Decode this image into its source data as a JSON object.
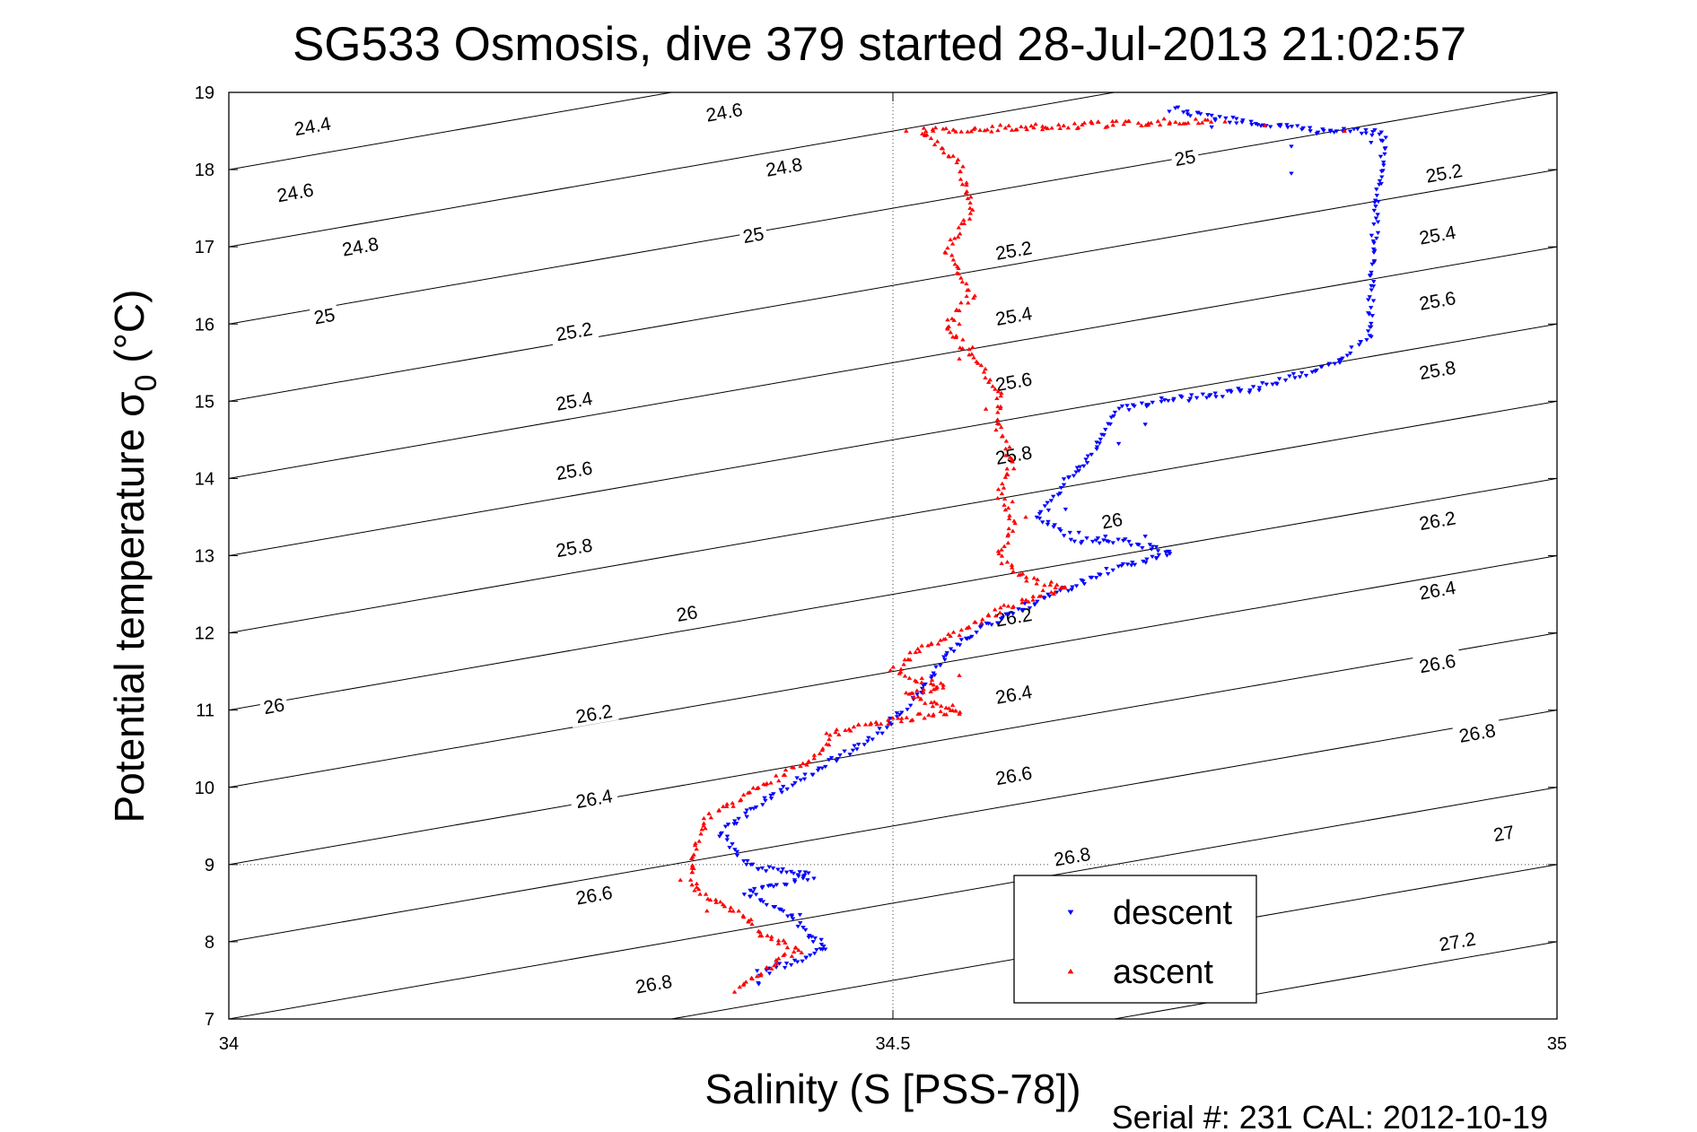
{
  "chart_data": {
    "type": "scatter",
    "title": "SG533 Osmosis, dive 379 started 28-Jul-2013 21:02:57",
    "xlabel": "Salinity (S [PSS-78])",
    "ylabel_main": "Potential temperature σ",
    "ylabel_sub": "0",
    "ylabel_unit": " (°C)",
    "footer": "Serial #: 231  CAL: 2012-10-19",
    "xlim": [
      34,
      35
    ],
    "ylim": [
      7,
      19
    ],
    "xticks": [
      34,
      34.5,
      35
    ],
    "xtick_labels": [
      "34",
      "34.5",
      "35"
    ],
    "yticks": [
      7,
      8,
      9,
      10,
      11,
      12,
      13,
      14,
      15,
      16,
      17,
      18,
      19
    ],
    "ytick_labels": [
      "7",
      "8",
      "9",
      "10",
      "11",
      "12",
      "13",
      "14",
      "15",
      "16",
      "17",
      "18",
      "19"
    ],
    "grid": "x = 34.5 and y = 9 dotted lines",
    "legend_position": "bottom-right",
    "contours": {
      "levels": [
        24.4,
        24.6,
        24.8,
        25,
        25.2,
        25.4,
        25.6,
        25.8,
        26,
        26.2,
        26.4,
        26.6,
        26.8,
        27,
        27.2
      ],
      "labels": [
        {
          "text": "24.4",
          "s": 34.063,
          "t": 18.56
        },
        {
          "text": "24.6",
          "s": 34.373,
          "t": 18.74
        },
        {
          "text": "24.6",
          "s": 34.05,
          "t": 17.7
        },
        {
          "text": "24.8",
          "s": 34.418,
          "t": 18.03
        },
        {
          "text": "24.8",
          "s": 34.099,
          "t": 17.0
        },
        {
          "text": "25",
          "s": 34.395,
          "t": 17.15
        },
        {
          "text": "25",
          "s": 34.072,
          "t": 16.1
        },
        {
          "text": "25",
          "s": 34.72,
          "t": 18.15
        },
        {
          "text": "25.2",
          "s": 34.26,
          "t": 15.9
        },
        {
          "text": "25.2",
          "s": 34.591,
          "t": 16.95
        },
        {
          "text": "25.2",
          "s": 34.915,
          "t": 17.95
        },
        {
          "text": "25.4",
          "s": 34.26,
          "t": 15.0
        },
        {
          "text": "25.4",
          "s": 34.591,
          "t": 16.1
        },
        {
          "text": "25.4",
          "s": 34.91,
          "t": 17.15
        },
        {
          "text": "25.6",
          "s": 34.26,
          "t": 14.1
        },
        {
          "text": "25.6",
          "s": 34.591,
          "t": 15.25
        },
        {
          "text": "25.6",
          "s": 34.91,
          "t": 16.3
        },
        {
          "text": "25.8",
          "s": 34.26,
          "t": 13.1
        },
        {
          "text": "25.8",
          "s": 34.591,
          "t": 14.3
        },
        {
          "text": "25.8",
          "s": 34.91,
          "t": 15.4
        },
        {
          "text": "26",
          "s": 34.034,
          "t": 11.05
        },
        {
          "text": "26",
          "s": 34.345,
          "t": 12.25
        },
        {
          "text": "26",
          "s": 34.665,
          "t": 13.45
        },
        {
          "text": "26.2",
          "s": 34.275,
          "t": 10.95
        },
        {
          "text": "26.2",
          "s": 34.591,
          "t": 12.2
        },
        {
          "text": "26.2",
          "s": 34.91,
          "t": 13.45
        },
        {
          "text": "26.4",
          "s": 34.275,
          "t": 9.85
        },
        {
          "text": "26.4",
          "s": 34.591,
          "t": 11.2
        },
        {
          "text": "26.4",
          "s": 34.91,
          "t": 12.55
        },
        {
          "text": "26.6",
          "s": 34.275,
          "t": 8.6
        },
        {
          "text": "26.6",
          "s": 34.591,
          "t": 10.15
        },
        {
          "text": "26.6",
          "s": 34.91,
          "t": 11.6
        },
        {
          "text": "26.8",
          "s": 34.32,
          "t": 7.45
        },
        {
          "text": "26.8",
          "s": 34.635,
          "t": 9.1
        },
        {
          "text": "26.8",
          "s": 34.94,
          "t": 10.7
        },
        {
          "text": "27",
          "s": 34.96,
          "t": 9.4
        },
        {
          "text": "27.2",
          "s": 34.925,
          "t": 8.0
        }
      ]
    },
    "series": [
      {
        "name": "descent",
        "color": "#0000ff",
        "marker": "triangle-down",
        "path": [
          [
            34.71,
            18.78
          ],
          [
            34.73,
            18.7
          ],
          [
            34.77,
            18.6
          ],
          [
            34.82,
            18.5
          ],
          [
            34.87,
            18.48
          ],
          [
            34.86,
            16.7
          ],
          [
            34.86,
            15.85
          ],
          [
            34.83,
            15.45
          ],
          [
            34.78,
            15.2
          ],
          [
            34.75,
            15.1
          ],
          [
            34.7,
            15.0
          ],
          [
            34.67,
            14.9
          ],
          [
            34.66,
            14.6
          ],
          [
            34.65,
            14.3
          ],
          [
            34.63,
            14.0
          ],
          [
            34.62,
            13.7
          ],
          [
            34.61,
            13.5
          ],
          [
            34.64,
            13.2
          ],
          [
            34.67,
            13.2
          ],
          [
            34.71,
            13.05
          ],
          [
            34.66,
            12.8
          ],
          [
            34.62,
            12.5
          ],
          [
            34.57,
            12.1
          ],
          [
            34.54,
            11.7
          ],
          [
            34.52,
            11.2
          ],
          [
            34.49,
            10.7
          ],
          [
            34.44,
            10.2
          ],
          [
            34.4,
            9.8
          ],
          [
            34.37,
            9.4
          ],
          [
            34.39,
            9.0
          ],
          [
            34.44,
            8.85
          ],
          [
            34.39,
            8.65
          ],
          [
            34.42,
            8.35
          ],
          [
            34.45,
            7.9
          ],
          [
            34.4,
            7.6
          ],
          [
            34.4,
            7.4
          ]
        ],
        "extra_points": [
          [
            34.74,
            18.55
          ],
          [
            34.84,
            18.5
          ],
          [
            34.8,
            18.3
          ],
          [
            34.86,
            18.35
          ],
          [
            34.8,
            17.95
          ],
          [
            34.69,
            14.7
          ],
          [
            34.67,
            14.45
          ],
          [
            34.64,
            14.1
          ],
          [
            34.63,
            13.6
          ],
          [
            34.64,
            13.3
          ],
          [
            34.66,
            13.25
          ],
          [
            34.69,
            13.25
          ],
          [
            34.42,
            8.9
          ],
          [
            34.43,
            8.35
          ],
          [
            34.44,
            8.0
          ]
        ]
      },
      {
        "name": "ascent",
        "color": "#ff0000",
        "marker": "triangle-up",
        "path": [
          [
            34.74,
            18.65
          ],
          [
            34.68,
            18.6
          ],
          [
            34.6,
            18.55
          ],
          [
            34.52,
            18.5
          ],
          [
            34.55,
            18.1
          ],
          [
            34.56,
            17.5
          ],
          [
            34.54,
            16.95
          ],
          [
            34.56,
            16.4
          ],
          [
            34.54,
            15.95
          ],
          [
            34.56,
            15.6
          ],
          [
            34.58,
            15.1
          ],
          [
            34.58,
            14.6
          ],
          [
            34.59,
            14.2
          ],
          [
            34.58,
            13.8
          ],
          [
            34.59,
            13.4
          ],
          [
            34.58,
            13.0
          ],
          [
            34.6,
            12.7
          ],
          [
            34.63,
            12.6
          ],
          [
            34.58,
            12.3
          ],
          [
            34.55,
            12.0
          ],
          [
            34.52,
            11.8
          ],
          [
            34.5,
            11.5
          ],
          [
            34.54,
            11.3
          ],
          [
            34.51,
            11.2
          ],
          [
            34.55,
            11.0
          ],
          [
            34.46,
            10.75
          ],
          [
            34.44,
            10.4
          ],
          [
            34.4,
            10.0
          ],
          [
            34.36,
            9.6
          ],
          [
            34.35,
            9.2
          ],
          [
            34.35,
            8.7
          ],
          [
            34.37,
            8.5
          ],
          [
            34.39,
            8.3
          ],
          [
            34.4,
            8.1
          ],
          [
            34.43,
            7.9
          ],
          [
            34.4,
            7.6
          ],
          [
            34.38,
            7.35
          ]
        ],
        "extra_points": [
          [
            34.51,
            18.5
          ],
          [
            34.6,
            18.55
          ],
          [
            34.65,
            18.6
          ],
          [
            34.75,
            18.62
          ],
          [
            34.78,
            18.57
          ],
          [
            34.84,
            18.5
          ],
          [
            34.55,
            16.0
          ],
          [
            34.56,
            15.7
          ],
          [
            34.55,
            15.55
          ],
          [
            34.57,
            14.9
          ],
          [
            34.59,
            13.7
          ],
          [
            34.6,
            13.5
          ],
          [
            34.55,
            11.45
          ],
          [
            34.53,
            11.05
          ],
          [
            34.55,
            10.95
          ],
          [
            34.45,
            10.7
          ],
          [
            34.34,
            8.8
          ],
          [
            34.35,
            8.95
          ],
          [
            34.36,
            8.4
          ]
        ]
      }
    ]
  }
}
